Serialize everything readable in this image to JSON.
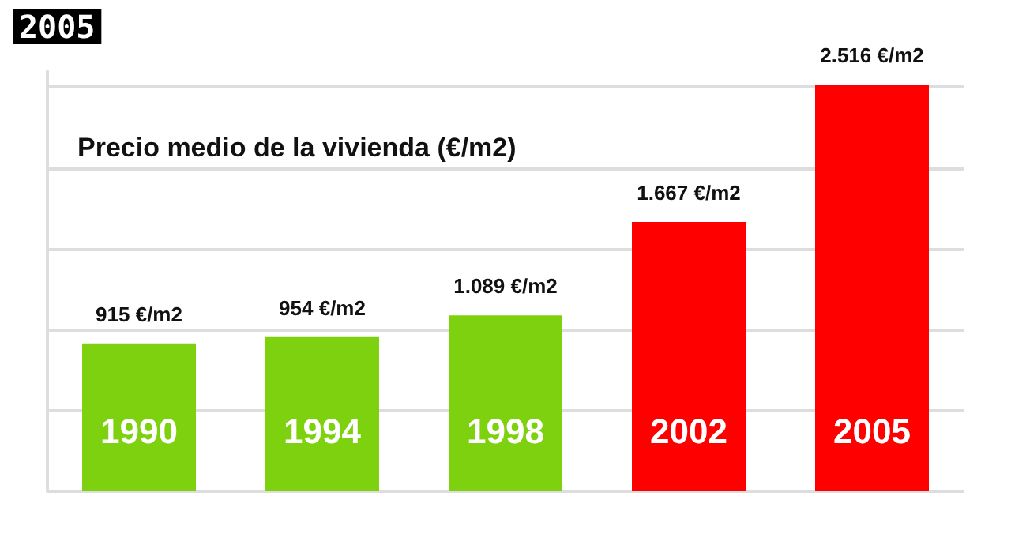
{
  "chart_data": {
    "type": "bar",
    "title": "2005",
    "subtitle": "Precio medio de la vivienda (€/m2)",
    "categories": [
      "1990",
      "1994",
      "1998",
      "2002",
      "2005"
    ],
    "values": [
      915,
      954,
      1089,
      1667,
      2516
    ],
    "colors": [
      "#7ed10f",
      "#7ed10f",
      "#7ed10f",
      "#ff0000",
      "#ff0000"
    ],
    "value_labels": [
      "915 €/m2",
      "954 €/m2",
      "1.089 €/m2",
      "1.667 €/m2",
      "2.516 €/m2"
    ],
    "ylim": [
      0,
      2600
    ],
    "yticks": [
      {
        "value": 0,
        "label": null
      },
      {
        "value": 500,
        "label": null
      },
      {
        "value": 1000,
        "label": null
      },
      {
        "value": 1500,
        "label": null
      },
      {
        "value": 2000,
        "label": null
      },
      {
        "value": 2500,
        "label": null
      }
    ],
    "grid": "y",
    "tick_labels": "x"
  }
}
